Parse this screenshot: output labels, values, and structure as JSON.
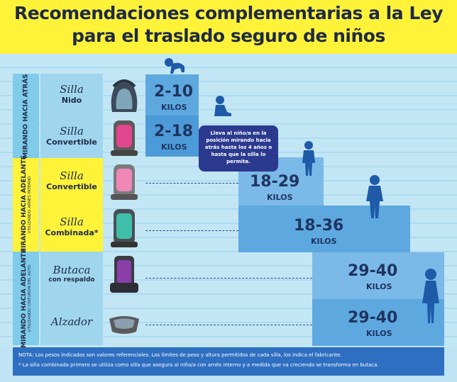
{
  "title": {
    "line1": "Recomendaciones complementarias a la Ley",
    "line2": "para el traslado seguro de niños"
  },
  "sections": [
    {
      "main": "MIRANDO HACIA ATRÁS",
      "sub": ""
    },
    {
      "main": "MIRANDO HACIA ADELANTE",
      "sub": "UTILIZANDO ARNÉS INTERNO"
    },
    {
      "main": "MIRANDO HACIA ADELANTE",
      "sub": "UTILIZANDO CINTURÓN DEL AUTO"
    }
  ],
  "rows": [
    {
      "script": "Silla",
      "bold": "Nido",
      "weight": "2-10",
      "unit": "KILOS",
      "seat_icon": "infant-carrier-icon"
    },
    {
      "script": "Silla",
      "bold": "Convertible",
      "weight": "2-18",
      "unit": "KILOS",
      "seat_icon": "convertible-seat-icon"
    },
    {
      "script": "Silla",
      "bold": "Convertible",
      "weight": "18-29",
      "unit": "KILOS",
      "seat_icon": "convertible-seat-icon"
    },
    {
      "script": "Silla",
      "bold": "Combinada*",
      "weight": "18-36",
      "unit": "KILOS",
      "seat_icon": "combination-seat-icon"
    },
    {
      "script": "Butaca",
      "bold": "con respaldo",
      "weight": "29-40",
      "unit": "KILOS",
      "seat_icon": "high-back-booster-icon"
    },
    {
      "script": "Alzador",
      "bold": "",
      "weight": "29-40",
      "unit": "KILOS",
      "seat_icon": "booster-cushion-icon"
    }
  ],
  "note": "Lleva al niño/a en la posición mirando hacia atrás hasta los 4 años o hasta que la silla lo permita.",
  "footer": {
    "line1": "NOTA: Los pesos indicados son valores referenciales. Los límites de peso y altura permitidos de cada silla, los indica el fabricante.",
    "line2": "* La silla combinada primero se utiliza como silla que asegura al niño/a con arnés interno y a medida que va creciendo se transforma en butaca."
  },
  "colors": {
    "header_bg": "#fff33a",
    "title_text": "#1f2a44",
    "page_bg": "#bfe3f2",
    "step_blue": "#5ea8e0",
    "note_bg": "#2b3a8f",
    "footer_bg": "#2f6fc2",
    "child_silhouette": "#1f5aa8"
  }
}
